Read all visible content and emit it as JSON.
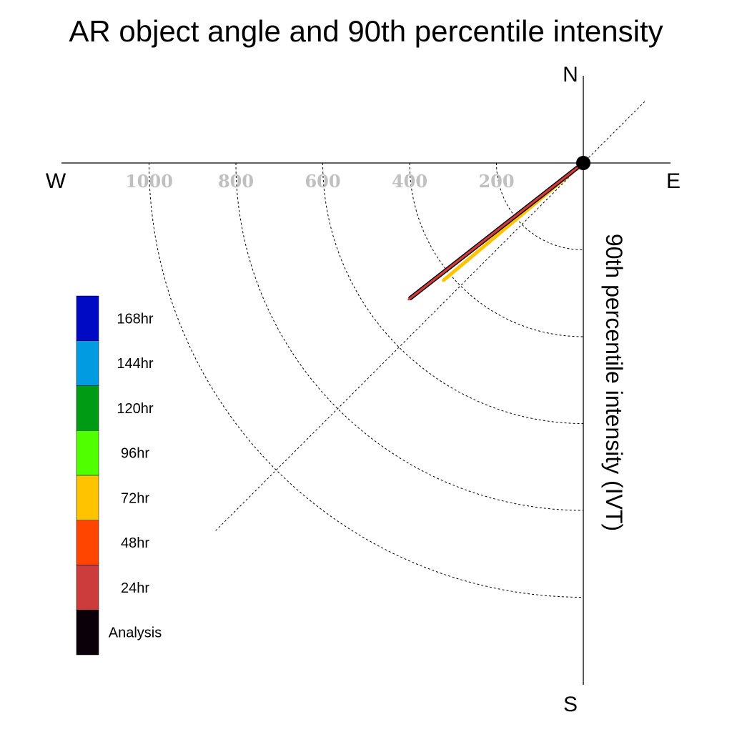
{
  "chart_data": {
    "type": "polar-vector",
    "title": "AR object angle and 90th percentile intensity",
    "radial_label": "90th percentile intensity (IVT)",
    "compass": {
      "north": "N",
      "south": "S",
      "east": "E",
      "west": "W"
    },
    "radial_ticks": [
      "200",
      "400",
      "600",
      "800",
      "1000"
    ],
    "radial_tick_values": [
      200,
      400,
      600,
      800,
      1000
    ],
    "radial_max": 1200,
    "reference_direction_deg": 225,
    "series": [
      {
        "name": "Analysis",
        "color": "#0b0009",
        "magnitude": 505,
        "direction_deg": 232
      },
      {
        "name": "24hr",
        "color": "#cd3c3c",
        "magnitude": 510,
        "direction_deg": 232
      },
      {
        "name": "48hr",
        "color": "#ff4500",
        "magnitude": 500,
        "direction_deg": 232
      },
      {
        "name": "72hr",
        "color": "#ffc300",
        "magnitude": 420,
        "direction_deg": 230
      }
    ],
    "legend": [
      {
        "label": "168hr",
        "color": "#0009c3"
      },
      {
        "label": "144hr",
        "color": "#009be0"
      },
      {
        "label": "120hr",
        "color": "#009b14"
      },
      {
        "label": "96hr",
        "color": "#50ff00"
      },
      {
        "label": "72hr",
        "color": "#ffc300"
      },
      {
        "label": "48hr",
        "color": "#ff4500"
      },
      {
        "label": "24hr",
        "color": "#cd3c3c"
      },
      {
        "label": "Analysis",
        "color": "#0b0009"
      }
    ]
  }
}
